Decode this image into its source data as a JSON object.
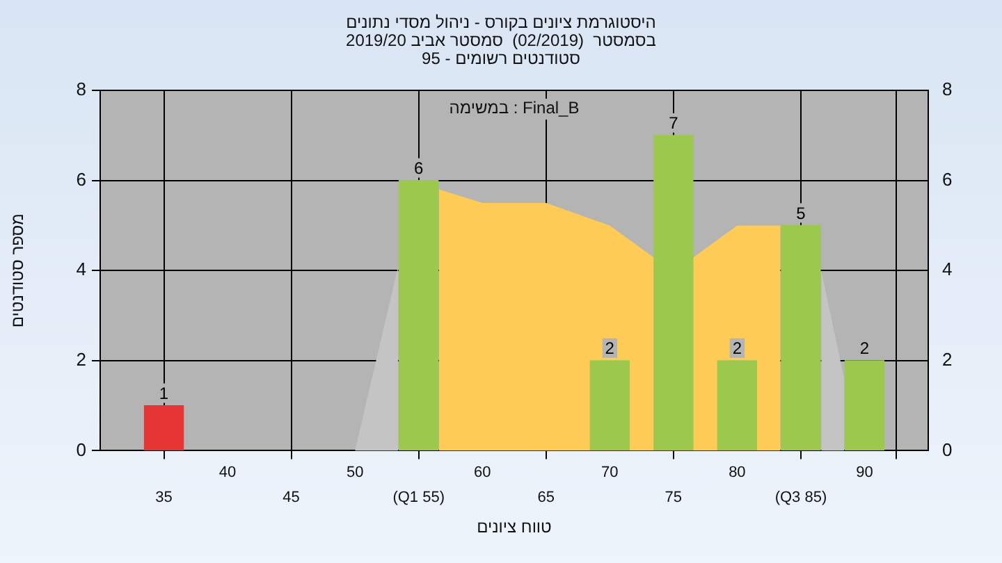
{
  "chart_data": {
    "type": "bar",
    "title": "היסטוגרמת ציונים בקורס - ניהול מסדי נתונים",
    "subtitle": "בסמסטר  (02/2019)  סמסטר אביב 2019/20\nסטודנטים רשומים - 95",
    "xlabel": "טווח ציונים",
    "ylabel": "מספר סטודנטים",
    "annotations": [
      "במשימה : Final_B"
    ],
    "xlim": [
      30,
      95
    ],
    "xticks": [
      {
        "value": 30,
        "label": null
      },
      40,
      50,
      60,
      70,
      80,
      90,
      {
        "value": 95,
        "label": null
      }
    ],
    "x2lim": [
      30,
      95
    ],
    "x2ticks": [
      35,
      45,
      {
        "value": 55,
        "label": "(Q1 55)"
      },
      65,
      75,
      {
        "value": 85,
        "label": "(Q3 85)"
      }
    ],
    "ylim": [
      0,
      8
    ],
    "yticks": [
      0,
      2,
      4,
      6,
      8
    ],
    "y2lim": [
      0,
      8
    ],
    "y2ticks": [
      0,
      2,
      4,
      6,
      8
    ],
    "grid": true,
    "series": [
      {
        "type": "area",
        "color": "#c4c4c4",
        "x": [
          50,
          53.4
        ],
        "values": [
          0,
          4.1
        ]
      },
      {
        "type": "area",
        "color": "#c4c4c4",
        "x": [
          86.6,
          88.4
        ],
        "values": [
          4,
          1.6
        ]
      },
      {
        "type": "area",
        "color": "#fecb57",
        "x": [
          56.6,
          60,
          65,
          70,
          73.4,
          76.6,
          80,
          83.4
        ],
        "values": [
          5.8,
          5.5,
          5.5,
          5,
          4.3,
          4.3,
          5,
          5
        ]
      },
      {
        "type": "bar",
        "colors": [
          "#e53535",
          "#9cc84e",
          "#9cc84e",
          "#9cc84e",
          "#9cc84e",
          "#9cc84e",
          "#9cc84e"
        ],
        "x": [
          35,
          55,
          70,
          75,
          80,
          85,
          90
        ],
        "values": [
          1,
          6,
          2,
          7,
          2,
          5,
          2
        ],
        "value_labels": [
          "1",
          "6",
          "2",
          "7",
          "2",
          "5",
          "2"
        ]
      }
    ]
  }
}
